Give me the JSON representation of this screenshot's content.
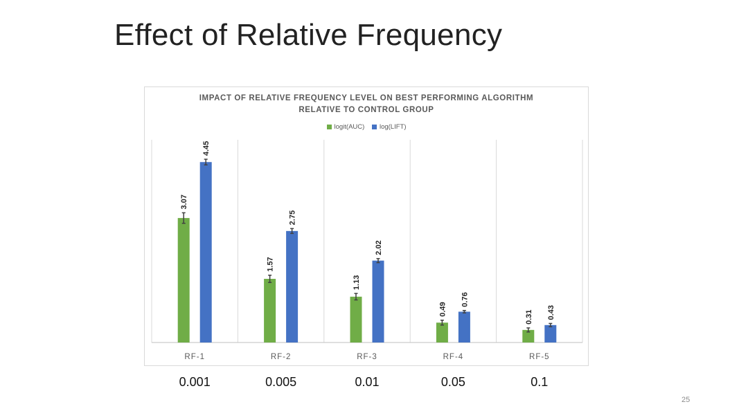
{
  "slide": {
    "title": "Effect of Relative Frequency",
    "page_number": "25",
    "under_labels": [
      "0.001",
      "0.005",
      "0.01",
      "0.05",
      "0.1"
    ]
  },
  "chart_data": {
    "type": "bar",
    "title_line1": "IMPACT OF RELATIVE FREQUENCY LEVEL ON BEST PERFORMING ALGORITHM",
    "title_line2": "RELATIVE TO CONTROL GROUP",
    "categories": [
      "RF-1",
      "RF-2",
      "RF-3",
      "RF-4",
      "RF-5"
    ],
    "series": [
      {
        "name": "logit(AUC)",
        "color": "#70ad47",
        "values": [
          3.07,
          1.57,
          1.13,
          0.49,
          0.31
        ],
        "labels": [
          "3.07",
          "1.57",
          "1.13",
          "0.49",
          "0.31"
        ],
        "error": [
          0.13,
          0.09,
          0.08,
          0.06,
          0.05
        ]
      },
      {
        "name": "log(LIFT)",
        "color": "#4472c4",
        "values": [
          4.45,
          2.75,
          2.02,
          0.76,
          0.43
        ],
        "labels": [
          "4.45",
          "2.75",
          "2.02",
          "0.76",
          "0.43"
        ],
        "error": [
          0.07,
          0.06,
          0.05,
          0.03,
          0.04
        ]
      }
    ],
    "ylim": [
      0,
      5
    ],
    "xlabel": "",
    "ylabel": "",
    "legend": "top-center",
    "grid": "vertical category separators"
  }
}
